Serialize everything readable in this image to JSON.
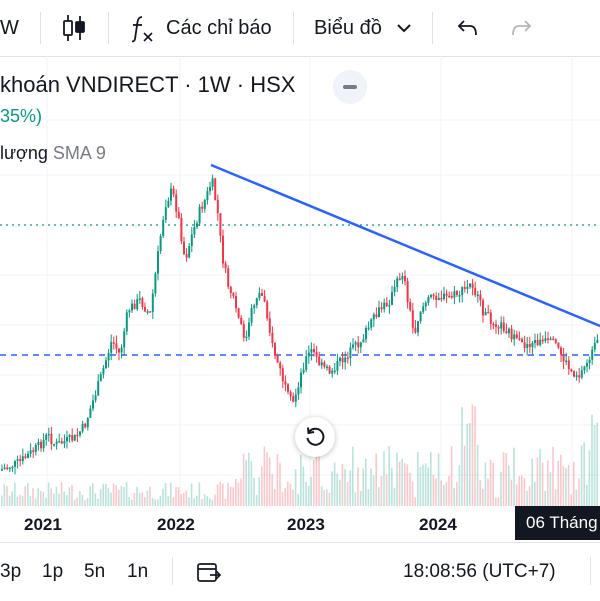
{
  "toolbar": {
    "partial_label": "W",
    "indicators_label": "Các chỉ báo",
    "chart_label": "Biểu đồ"
  },
  "legend": {
    "title": "khoán VNDIRECT · 1W · HSX",
    "change": "35%)",
    "volume_label": "lượng",
    "sma_label": "SMA 9"
  },
  "xaxis": {
    "labels": [
      "2021",
      "2022",
      "2023",
      "2024"
    ]
  },
  "date_badge": "06 Tháng",
  "bottom": {
    "ranges": [
      "3p",
      "1p",
      "5n",
      "1n"
    ],
    "time": "18:08:56 (UTC+7)"
  },
  "colors": {
    "up": "#089981",
    "down": "#f23645",
    "trendline": "#2962ff",
    "accent": "#131722"
  },
  "icons": [
    "candlestick-icon",
    "fx-icon",
    "chevron-down-icon",
    "undo-icon",
    "redo-icon",
    "minimize-icon",
    "reset-chart-icon",
    "go-to-date-icon"
  ]
}
